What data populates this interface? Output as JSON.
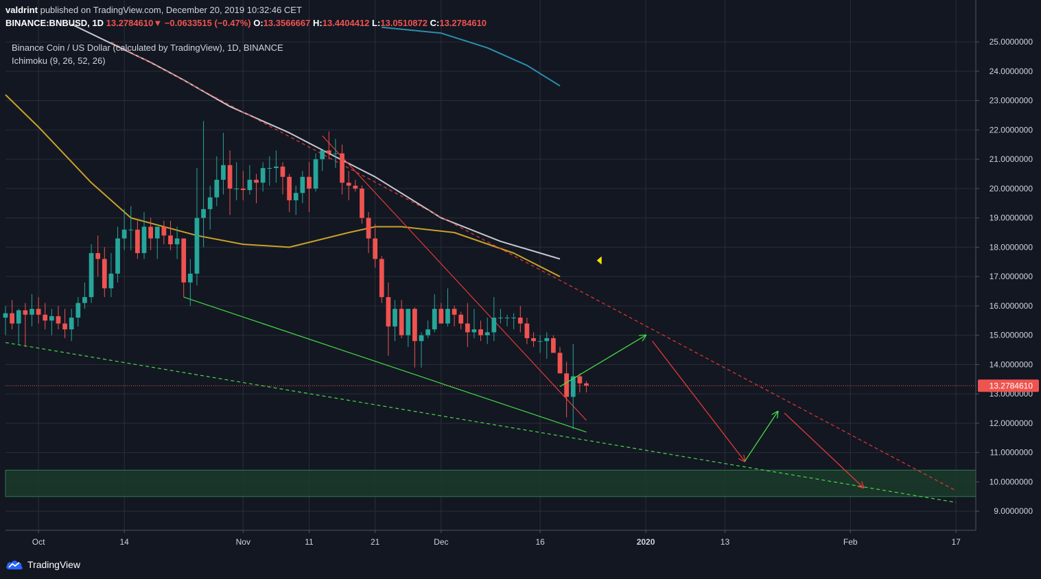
{
  "header": {
    "author": "valdrint",
    "published_text": "published on TradingView.com, December 20, 2019 10:32:46 CET"
  },
  "quote": {
    "symbol": "BINANCE:BNBUSD, 1D",
    "last": "13.2784610",
    "change": "−0.0633515 (−0.47%)",
    "open_label": "O:",
    "open": "13.3566667",
    "high_label": "H:",
    "high": "13.4404412",
    "low_label": "L:",
    "low": "13.0510872",
    "close_label": "C:",
    "close": "13.2784610"
  },
  "legend": {
    "title": "Binance Coin / US Dollar (calculated by TradingView), 1D, BINANCE",
    "indicator": "Ichimoku (9, 26, 52, 26)"
  },
  "brand": {
    "name": "TradingView"
  },
  "colors": {
    "background": "#131722",
    "grid": "#2a2e39",
    "up": "#26a69a",
    "down": "#ef5350",
    "ma_white": "#c8c8d0",
    "ma_yellow": "#c9a227",
    "ma_teal": "#2b8fb0",
    "trend_red": "#e53935",
    "trend_green": "#44dd44",
    "support_zone": "#1b3a2a",
    "price_label_bg": "#ef5350"
  },
  "chart_data": {
    "type": "candlestick",
    "x_axis": {
      "start_date": "2019-09-26",
      "end_date": "2020-02-20",
      "tick_labels": [
        {
          "label": "Oct",
          "date": "2019-10-01"
        },
        {
          "label": "14",
          "date": "2019-10-14"
        },
        {
          "label": "Nov",
          "date": "2019-11-01"
        },
        {
          "label": "11",
          "date": "2019-11-11"
        },
        {
          "label": "21",
          "date": "2019-11-21"
        },
        {
          "label": "Dec",
          "date": "2019-12-01"
        },
        {
          "label": "16",
          "date": "2019-12-16"
        },
        {
          "label": "2020",
          "date": "2020-01-01"
        },
        {
          "label": "13",
          "date": "2020-01-13"
        },
        {
          "label": "Feb",
          "date": "2020-02-01"
        },
        {
          "label": "17",
          "date": "2020-02-17"
        }
      ]
    },
    "y_axis": {
      "range": [
        8.35,
        25.4
      ],
      "tick_values": [
        9,
        10,
        11,
        12,
        13,
        14,
        15,
        16,
        17,
        18,
        19,
        20,
        21,
        22,
        23,
        24,
        25
      ],
      "tick_labels": [
        "9.0000000",
        "10.0000000",
        "11.0000000",
        "12.0000000",
        "13.0000000",
        "14.0000000",
        "15.0000000",
        "16.0000000",
        "17.0000000",
        "18.0000000",
        "19.0000000",
        "20.0000000",
        "21.0000000",
        "22.0000000",
        "23.0000000",
        "24.0000000",
        "25.0000000"
      ]
    },
    "current_price": {
      "value": 13.278461,
      "label": "13.2784610"
    },
    "candles": {
      "start_date": "2019-09-26",
      "columns": [
        "open",
        "high",
        "low",
        "close"
      ],
      "ohlc": [
        [
          15.6,
          16.0,
          15.0,
          15.75
        ],
        [
          15.75,
          16.2,
          15.2,
          15.4
        ],
        [
          15.4,
          15.9,
          14.7,
          15.85
        ],
        [
          15.85,
          16.1,
          14.6,
          15.7
        ],
        [
          15.7,
          16.4,
          15.3,
          15.9
        ],
        [
          15.9,
          16.3,
          15.4,
          15.7
        ],
        [
          15.7,
          16.1,
          15.2,
          15.5
        ],
        [
          15.5,
          15.9,
          15.0,
          15.65
        ],
        [
          15.65,
          16.0,
          15.2,
          15.4
        ],
        [
          15.4,
          15.9,
          14.9,
          15.2
        ],
        [
          15.2,
          15.9,
          14.8,
          15.6
        ],
        [
          15.6,
          16.3,
          15.3,
          16.1
        ],
        [
          16.1,
          16.8,
          15.9,
          16.3
        ],
        [
          16.3,
          18.1,
          16.1,
          17.8
        ],
        [
          17.8,
          18.4,
          17.0,
          17.6
        ],
        [
          17.6,
          18.0,
          16.3,
          16.6
        ],
        [
          16.6,
          17.8,
          16.3,
          17.1
        ],
        [
          17.1,
          18.7,
          16.8,
          18.3
        ],
        [
          18.3,
          19.3,
          17.9,
          18.6
        ],
        [
          18.6,
          19.4,
          17.9,
          18.6
        ],
        [
          18.6,
          18.9,
          17.6,
          17.8
        ],
        [
          17.8,
          19.2,
          17.6,
          18.7
        ],
        [
          18.7,
          19.0,
          17.9,
          18.3
        ],
        [
          18.3,
          18.6,
          17.6,
          18.7
        ],
        [
          18.7,
          18.9,
          18.1,
          18.4
        ],
        [
          18.4,
          18.9,
          17.9,
          18.1
        ],
        [
          18.1,
          18.7,
          17.6,
          18.3
        ],
        [
          18.3,
          18.2,
          16.3,
          16.8
        ],
        [
          16.8,
          17.6,
          16.0,
          17.1
        ],
        [
          17.1,
          20.7,
          16.7,
          19.0
        ],
        [
          19.0,
          22.3,
          18.0,
          19.3
        ],
        [
          19.3,
          20.1,
          18.6,
          19.7
        ],
        [
          19.7,
          21.1,
          19.4,
          20.3
        ],
        [
          20.3,
          21.9,
          19.8,
          20.8
        ],
        [
          20.8,
          21.3,
          19.1,
          20.0
        ],
        [
          20.0,
          20.9,
          19.6,
          20.0
        ],
        [
          20.0,
          20.6,
          19.6,
          19.95
        ],
        [
          19.95,
          20.8,
          19.8,
          20.3
        ],
        [
          20.3,
          20.5,
          19.5,
          20.2
        ],
        [
          20.2,
          20.9,
          19.9,
          20.7
        ],
        [
          20.7,
          21.1,
          20.1,
          20.7
        ],
        [
          20.7,
          21.3,
          20.2,
          20.75
        ],
        [
          20.75,
          20.9,
          19.8,
          20.4
        ],
        [
          20.4,
          20.5,
          19.2,
          19.6
        ],
        [
          19.6,
          20.1,
          19.1,
          19.85
        ],
        [
          19.85,
          20.6,
          19.5,
          20.4
        ],
        [
          20.4,
          20.9,
          19.2,
          20.0
        ],
        [
          20.0,
          21.2,
          19.9,
          21.0
        ],
        [
          21.0,
          21.3,
          20.6,
          21.3
        ],
        [
          21.3,
          21.95,
          21.0,
          21.2
        ],
        [
          21.2,
          21.7,
          20.7,
          21.2
        ],
        [
          21.2,
          21.5,
          19.8,
          20.2
        ],
        [
          20.2,
          20.6,
          19.6,
          20.1
        ],
        [
          20.1,
          20.3,
          19.9,
          20.0
        ],
        [
          20.0,
          20.1,
          18.8,
          19.0
        ],
        [
          19.0,
          19.2,
          17.8,
          18.3
        ],
        [
          18.3,
          18.8,
          17.3,
          17.6
        ],
        [
          17.6,
          17.7,
          16.1,
          16.3
        ],
        [
          16.3,
          16.8,
          14.3,
          15.3
        ],
        [
          15.3,
          16.2,
          14.8,
          15.9
        ],
        [
          15.9,
          16.2,
          14.9,
          15.0
        ],
        [
          15.0,
          15.8,
          14.6,
          15.9
        ],
        [
          15.9,
          15.95,
          13.9,
          14.8
        ],
        [
          14.8,
          15.1,
          13.9,
          15.0
        ],
        [
          15.0,
          15.5,
          14.9,
          15.2
        ],
        [
          15.2,
          16.4,
          15.1,
          15.9
        ],
        [
          15.9,
          16.1,
          15.4,
          15.4
        ],
        [
          15.4,
          16.6,
          15.3,
          15.9
        ],
        [
          15.9,
          16.0,
          15.3,
          15.7
        ],
        [
          15.7,
          15.8,
          15.2,
          15.4
        ],
        [
          15.4,
          16.1,
          14.6,
          15.1
        ],
        [
          15.1,
          15.9,
          14.9,
          15.2
        ],
        [
          15.2,
          15.5,
          14.8,
          15.0
        ],
        [
          15.0,
          15.6,
          14.7,
          15.1
        ],
        [
          15.1,
          16.3,
          14.8,
          15.6
        ],
        [
          15.6,
          15.9,
          15.4,
          15.6
        ],
        [
          15.6,
          15.7,
          15.3,
          15.6
        ],
        [
          15.6,
          15.75,
          15.2,
          15.6
        ],
        [
          15.6,
          16.0,
          15.1,
          15.4
        ],
        [
          15.4,
          15.6,
          14.7,
          14.9
        ],
        [
          14.9,
          15.1,
          14.6,
          14.8
        ],
        [
          14.8,
          15.0,
          14.4,
          14.8
        ],
        [
          14.8,
          15.1,
          14.2,
          14.9
        ],
        [
          14.9,
          15.0,
          14.4,
          14.4
        ],
        [
          14.4,
          14.6,
          13.7,
          13.7
        ],
        [
          13.7,
          14.1,
          12.2,
          12.9
        ],
        [
          12.9,
          14.7,
          11.8,
          13.6
        ],
        [
          13.6,
          13.7,
          13.05,
          13.36
        ],
        [
          13.36,
          13.44,
          13.05,
          13.28
        ]
      ]
    },
    "moving_averages": [
      {
        "color": "#c8c8d0",
        "points": [
          [
            "2019-10-06",
            25.6
          ],
          [
            "2019-10-18",
            24.3
          ],
          [
            "2019-10-23",
            23.7
          ],
          [
            "2019-10-30",
            22.8
          ],
          [
            "2019-11-08",
            21.9
          ],
          [
            "2019-11-14",
            21.2
          ],
          [
            "2019-11-21",
            20.4
          ],
          [
            "2019-12-01",
            19.0
          ],
          [
            "2019-12-10",
            18.2
          ],
          [
            "2019-12-19",
            17.6
          ]
        ]
      },
      {
        "color": "#c9a227",
        "points": [
          [
            "2019-09-26",
            23.2
          ],
          [
            "2019-10-01",
            22.1
          ],
          [
            "2019-10-09",
            20.2
          ],
          [
            "2019-10-15",
            19.0
          ],
          [
            "2019-10-25",
            18.4
          ],
          [
            "2019-11-01",
            18.1
          ],
          [
            "2019-11-08",
            18.0
          ],
          [
            "2019-11-17",
            18.5
          ],
          [
            "2019-11-21",
            18.7
          ],
          [
            "2019-11-25",
            18.7
          ],
          [
            "2019-12-03",
            18.5
          ],
          [
            "2019-12-12",
            17.8
          ],
          [
            "2019-12-19",
            17.0
          ]
        ]
      },
      {
        "color": "#2b8fb0",
        "points": [
          [
            "2019-11-22",
            25.5
          ],
          [
            "2019-12-01",
            25.3
          ],
          [
            "2019-12-08",
            24.8
          ],
          [
            "2019-12-14",
            24.2
          ],
          [
            "2019-12-19",
            23.5
          ]
        ]
      }
    ],
    "trendlines": [
      {
        "style": "dashed",
        "color": "#e53935",
        "from": [
          "2019-10-12",
          25.0
        ],
        "to": [
          "2020-02-17",
          9.7
        ]
      },
      {
        "style": "solid",
        "color": "#e53935",
        "from": [
          "2019-11-13",
          21.8
        ],
        "to": [
          "2019-12-23",
          12.1
        ]
      },
      {
        "style": "solid",
        "color": "#44dd44",
        "from": [
          "2019-10-23",
          16.3
        ],
        "to": [
          "2019-12-23",
          11.7
        ]
      },
      {
        "style": "dashed",
        "color": "#44dd44",
        "from": [
          "2019-09-26",
          14.75
        ],
        "to": [
          "2020-02-17",
          9.3
        ]
      }
    ],
    "projection_arrows": [
      {
        "color": "#44dd44",
        "from": [
          "2019-12-19",
          13.25
        ],
        "to": [
          "2020-01-01",
          15.0
        ]
      },
      {
        "color": "#e53935",
        "from": [
          "2020-01-02",
          14.8
        ],
        "to": [
          "2020-01-16",
          10.7
        ]
      },
      {
        "color": "#44dd44",
        "from": [
          "2020-01-16",
          10.7
        ],
        "to": [
          "2020-01-21",
          12.4
        ]
      },
      {
        "color": "#e53935",
        "from": [
          "2020-01-22",
          12.35
        ],
        "to": [
          "2020-02-03",
          9.8
        ]
      }
    ],
    "support_zone": {
      "low": 9.5,
      "high": 10.4
    },
    "marker": {
      "shape": "triangle-left",
      "color": "#f5e100",
      "date": "2019-12-25",
      "value": 17.55
    }
  }
}
